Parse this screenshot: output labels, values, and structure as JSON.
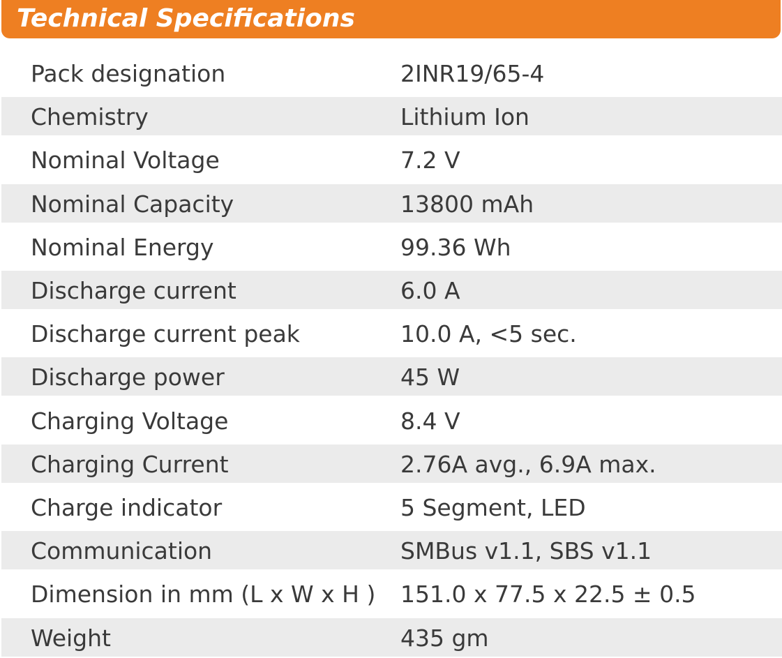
{
  "header": {
    "title": "Technical Specifications"
  },
  "table": {
    "rows": [
      [
        "Pack designation",
        "2INR19/65-4"
      ],
      [
        "Chemistry",
        "Lithium Ion"
      ],
      [
        "Nominal Voltage",
        "7.2 V"
      ],
      [
        "Nominal Capacity",
        "13800 mAh"
      ],
      [
        "Nominal Energy",
        "99.36 Wh"
      ],
      [
        "Discharge current",
        "6.0 A"
      ],
      [
        "Discharge current peak",
        "10.0 A, <5 sec."
      ],
      [
        "Discharge power",
        "45 W"
      ],
      [
        "Charging Voltage",
        "8.4 V"
      ],
      [
        "Charging Current",
        "2.76A avg., 6.9A max."
      ],
      [
        "Charge indicator",
        "5 Segment, LED"
      ],
      [
        "Communication",
        "SMBus v1.1, SBS v1.1"
      ],
      [
        "Dimension in mm (L x W x H )",
        "151.0 x 77.5 x 22.5 ± 0.5"
      ],
      [
        "Weight",
        "435 gm"
      ]
    ]
  }
}
